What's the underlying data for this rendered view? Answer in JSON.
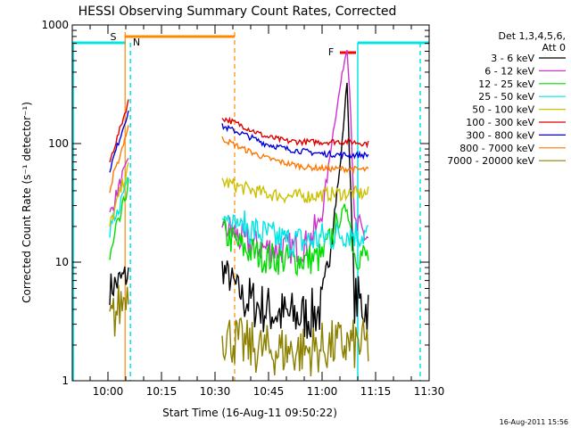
{
  "chart_data": {
    "type": "line",
    "title": "HESSI Observing Summary Count Rates, Corrected",
    "xlabel": "Start Time (16-Aug-11 09:50:22)",
    "ylabel": "Corrected Count Rate (s⁻¹ detector⁻¹)",
    "yscale": "log",
    "ylim": [
      1,
      1000
    ],
    "xlim_minutes": [
      0,
      100
    ],
    "x_ticks": [
      {
        "label": "10:00",
        "t": 10
      },
      {
        "label": "10:15",
        "t": 25
      },
      {
        "label": "10:30",
        "t": 40
      },
      {
        "label": "10:45",
        "t": 55
      },
      {
        "label": "11:00",
        "t": 70
      },
      {
        "label": "11:15",
        "t": 85
      },
      {
        "label": "11:30",
        "t": 100
      }
    ],
    "y_ticks": [
      {
        "label": "1",
        "v": 1
      },
      {
        "label": "10",
        "v": 10
      },
      {
        "label": "100",
        "v": 100
      },
      {
        "label": "1000",
        "v": 1000
      }
    ],
    "legend_title": [
      "Det 1,3,4,5,6,",
      "Att 0"
    ],
    "legend_position": "right",
    "timestamp": "16-Aug-2011 15:56",
    "segments": [
      [
        10.5,
        16
      ],
      [
        42,
        83
      ]
    ],
    "series": [
      {
        "name": "3 - 6 keV",
        "color": "#000000",
        "points": [
          [
            10.5,
            6
          ],
          [
            16,
            8
          ],
          [
            42,
            9
          ],
          [
            48,
            5
          ],
          [
            54,
            4
          ],
          [
            60,
            3.5
          ],
          [
            66,
            3.5
          ],
          [
            70,
            4
          ],
          [
            72,
            12
          ],
          [
            75,
            60
          ],
          [
            77,
            340
          ],
          [
            78,
            40
          ],
          [
            79,
            5
          ],
          [
            83,
            4
          ]
        ]
      },
      {
        "name": "6 - 12 keV",
        "color": "#cc33cc",
        "points": [
          [
            10.5,
            25
          ],
          [
            16,
            80
          ],
          [
            42,
            21
          ],
          [
            48,
            15
          ],
          [
            54,
            13
          ],
          [
            60,
            13
          ],
          [
            66,
            14
          ],
          [
            70,
            25
          ],
          [
            73,
            120
          ],
          [
            76,
            450
          ],
          [
            77,
            650
          ],
          [
            78,
            200
          ],
          [
            79,
            20
          ],
          [
            83,
            16
          ]
        ]
      },
      {
        "name": "12 - 25 keV",
        "color": "#00dd00",
        "points": [
          [
            10.5,
            10
          ],
          [
            16,
            50
          ],
          [
            42,
            18
          ],
          [
            48,
            13
          ],
          [
            54,
            11
          ],
          [
            60,
            10.5
          ],
          [
            66,
            10.5
          ],
          [
            70,
            11
          ],
          [
            74,
            20
          ],
          [
            77,
            30
          ],
          [
            79,
            12
          ],
          [
            83,
            11
          ]
        ]
      },
      {
        "name": "25 - 50 keV",
        "color": "#00e5e5",
        "points": [
          [
            10.5,
            15
          ],
          [
            16,
            60
          ],
          [
            42,
            26
          ],
          [
            48,
            20
          ],
          [
            54,
            17
          ],
          [
            60,
            15
          ],
          [
            66,
            15
          ],
          [
            70,
            16
          ],
          [
            74,
            17
          ],
          [
            77,
            18
          ],
          [
            83,
            17
          ]
        ]
      },
      {
        "name": "50 - 100 keV",
        "color": "#ccc000",
        "points": [
          [
            10.5,
            20
          ],
          [
            16,
            70
          ],
          [
            42,
            48
          ],
          [
            48,
            42
          ],
          [
            54,
            38
          ],
          [
            60,
            36
          ],
          [
            66,
            36
          ],
          [
            70,
            37
          ],
          [
            74,
            38
          ],
          [
            77,
            38
          ],
          [
            83,
            38
          ]
        ]
      },
      {
        "name": "100 - 300 keV",
        "color": "#dd0000",
        "points": [
          [
            10.5,
            70
          ],
          [
            16,
            240
          ],
          [
            42,
            165
          ],
          [
            48,
            140
          ],
          [
            54,
            115
          ],
          [
            60,
            105
          ],
          [
            66,
            103
          ],
          [
            70,
            103
          ],
          [
            74,
            104
          ],
          [
            77,
            104
          ],
          [
            83,
            100
          ]
        ]
      },
      {
        "name": "300 - 800 keV",
        "color": "#0000dd",
        "points": [
          [
            10.5,
            60
          ],
          [
            16,
            200
          ],
          [
            42,
            140
          ],
          [
            48,
            120
          ],
          [
            54,
            100
          ],
          [
            60,
            90
          ],
          [
            66,
            85
          ],
          [
            70,
            82
          ],
          [
            74,
            81
          ],
          [
            77,
            80
          ],
          [
            83,
            80
          ]
        ]
      },
      {
        "name": "800 - 7000 keV",
        "color": "#ff7700",
        "points": [
          [
            10.5,
            40
          ],
          [
            16,
            150
          ],
          [
            42,
            110
          ],
          [
            48,
            90
          ],
          [
            54,
            76
          ],
          [
            60,
            68
          ],
          [
            66,
            63
          ],
          [
            70,
            62
          ],
          [
            74,
            61
          ],
          [
            77,
            61
          ],
          [
            83,
            60
          ]
        ]
      },
      {
        "name": "7000 - 20000 keV",
        "color": "#8b8000",
        "points": [
          [
            10.5,
            3
          ],
          [
            16,
            6
          ],
          [
            42,
            2.5
          ],
          [
            48,
            2
          ],
          [
            54,
            1.8
          ],
          [
            60,
            1.8
          ],
          [
            66,
            1.8
          ],
          [
            70,
            1.9
          ],
          [
            74,
            2
          ],
          [
            77,
            2
          ],
          [
            83,
            2
          ]
        ]
      }
    ],
    "annotations": [
      {
        "text": "S",
        "color": "#ff8800"
      },
      {
        "text": "N",
        "color": "#00e5e5"
      },
      {
        "text": "F",
        "color": "#ff0000"
      }
    ]
  }
}
